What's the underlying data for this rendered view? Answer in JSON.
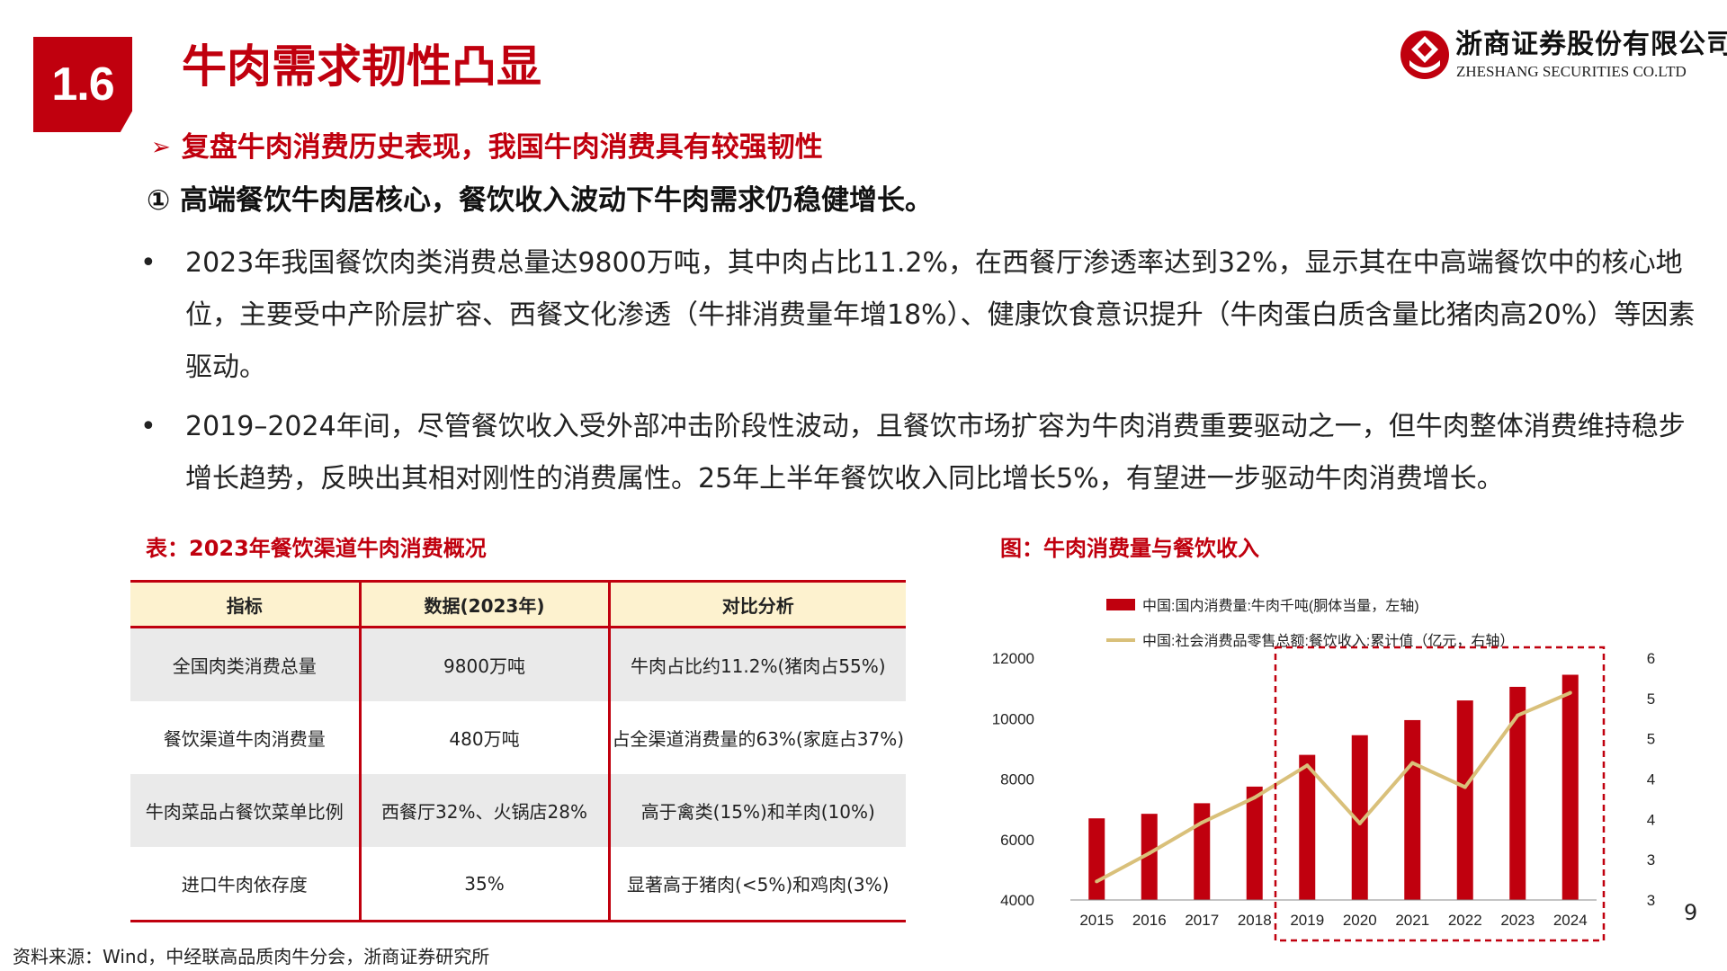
{
  "header": {
    "section_number": "1.6",
    "title": "牛肉需求韧性凸显",
    "brand_cn": "浙商证券股份有限公司",
    "brand_en": "ZHESHANG SECURITIES CO.LTD",
    "brand_color": "#c0000e"
  },
  "content": {
    "bullet_heading": "复盘牛肉消费历史表现，我国牛肉消费具有较强韧性",
    "sub_heading": "① 高端餐饮牛肉居核心，餐饮收入波动下牛肉需求仍稳健增长。",
    "paragraphs": [
      "2023年我国餐饮肉类消费总量达9800万吨，其中肉占比11.2%，在西餐厅渗透率达到32%，显示其在中高端餐饮中的核心地位，主要受中产阶层扩容、西餐文化渗透（牛排消费量年增18%）、健康饮食意识提升（牛肉蛋白质含量比猪肉高20%）等因素驱动。",
      "2019–2024年间，尽管餐饮收入受外部冲击阶段性波动，且餐饮市场扩容为牛肉消费重要驱动之一，但牛肉整体消费维持稳步增长趋势，反映出其相对刚性的消费属性。25年上半年餐饮收入同比增长5%，有望进一步驱动牛肉消费增长。"
    ]
  },
  "table": {
    "caption": "表：2023年餐饮渠道牛肉消费概况",
    "headers": [
      "指标",
      "数据(2023年)",
      "对比分析"
    ],
    "rows": [
      [
        "全国肉类消费总量",
        "9800万吨",
        "牛肉占比约11.2%(猪肉占55%)"
      ],
      [
        "餐饮渠道牛肉消费量",
        "480万吨",
        "占全渠道消费量的63%(家庭占37%)"
      ],
      [
        "牛肉菜品占餐饮菜单比例",
        "西餐厅32%、火锅店28%",
        "高于禽类(15%)和羊肉(10%)"
      ],
      [
        "进口牛肉依存度",
        "35%",
        "显著高于猪肉(<5%)和鸡肉(3%)"
      ]
    ]
  },
  "chart": {
    "caption": "图：牛肉消费量与餐饮收入"
  },
  "chart_data": {
    "type": "bar",
    "categories": [
      "2015",
      "2016",
      "2017",
      "2018",
      "2019",
      "2020",
      "2021",
      "2022",
      "2023",
      "2024"
    ],
    "series": [
      {
        "name": "中国:国内消费量:牛肉千吨(胴体当量，左轴)",
        "type": "bar",
        "axis": "left",
        "color": "#c0000e",
        "values": [
          6700,
          6850,
          7200,
          7750,
          8800,
          9450,
          9950,
          10600,
          11050,
          11450
        ]
      },
      {
        "name": "中国:社会消费品零售总额:餐饮收入:累计值（亿元，右轴）",
        "type": "line",
        "axis": "right",
        "color": "#d9c07a",
        "values": [
          32300,
          35800,
          39600,
          42700,
          46700,
          39500,
          47000,
          44000,
          52900,
          55700
        ]
      }
    ],
    "y_left": {
      "min": 4000,
      "max": 12000,
      "ticks": [
        4000,
        6000,
        8000,
        10000,
        12000
      ]
    },
    "y_right": {
      "min": 30000,
      "max": 60000,
      "ticks": [
        30000,
        35000,
        40000,
        45000,
        50000,
        55000,
        60000
      ]
    },
    "highlight_range": [
      "2019",
      "2024"
    ],
    "highlight_color": "#c0000e",
    "legend_position": "top",
    "grid": false
  },
  "footer": {
    "source": "资料来源：Wind，中经联高品质肉牛分会，浙商证券研究所",
    "page_number": "9"
  }
}
